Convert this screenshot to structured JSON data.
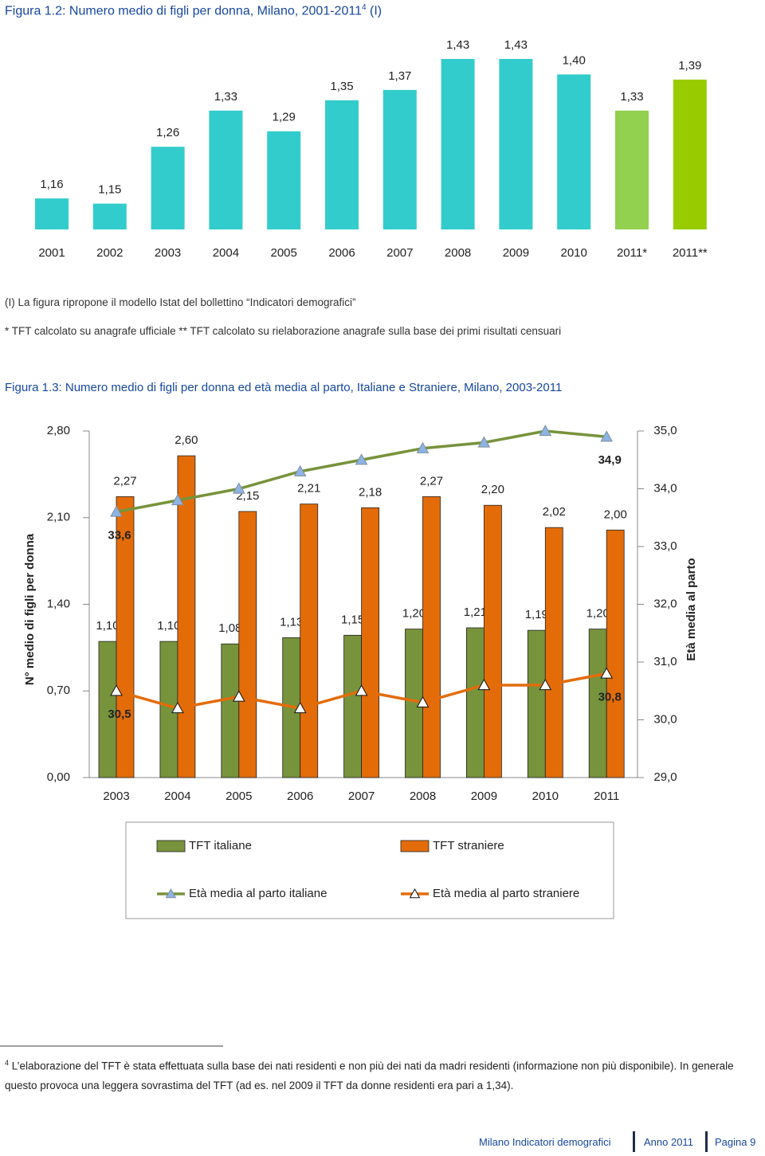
{
  "chart_data": [
    {
      "type": "bar",
      "title": "Figura 1.2: Numero medio di figli per donna, Milano, 2001-2011",
      "title_note_ref": "4",
      "title_suffix": "(I)",
      "categories": [
        "2001",
        "2002",
        "2003",
        "2004",
        "2005",
        "2006",
        "2007",
        "2008",
        "2009",
        "2010",
        "2011*",
        "2011**"
      ],
      "values": [
        1.16,
        1.15,
        1.26,
        1.33,
        1.29,
        1.35,
        1.37,
        1.43,
        1.43,
        1.4,
        1.33,
        1.39
      ],
      "value_labels": [
        "1,16",
        "1,15",
        "1,26",
        "1,33",
        "1,29",
        "1,35",
        "1,37",
        "1,43",
        "1,43",
        "1,40",
        "1,33",
        "1,39"
      ],
      "colors": [
        "#33CCCC",
        "#33CCCC",
        "#33CCCC",
        "#33CCCC",
        "#33CCCC",
        "#33CCCC",
        "#33CCCC",
        "#33CCCC",
        "#33CCCC",
        "#33CCCC",
        "#92D050",
        "#99CC00"
      ],
      "ylim": [
        1.1,
        1.45
      ],
      "notes": [
        "(I) La figura ripropone il modello Istat del bollettino “Indicatori demografici”",
        "* TFT calcolato su anagrafe ufficiale ** TFT calcolato su rielaborazione anagrafe sulla base dei primi risultati censuari"
      ]
    },
    {
      "type": "combo",
      "title": "Figura 1.3: Numero medio di figli per donna ed età media al parto, Italiane e Straniere, Milano, 2003-2011",
      "categories": [
        "2003",
        "2004",
        "2005",
        "2006",
        "2007",
        "2008",
        "2009",
        "2010",
        "2011"
      ],
      "ylabel": "N° medio di figli per donna",
      "y2label": "Età media al parto",
      "ylim": [
        0,
        2.8
      ],
      "yticks": [
        {
          "value": 0,
          "label": "0,00"
        },
        {
          "value": 0.7,
          "label": "0,70"
        },
        {
          "value": 1.4,
          "label": "1,40"
        },
        {
          "value": 2.1,
          "label": "2,10"
        },
        {
          "value": 2.8,
          "label": "2,80"
        }
      ],
      "y2lim": [
        29,
        35
      ],
      "y2ticks": [
        {
          "value": 29,
          "label": "29,0"
        },
        {
          "value": 30,
          "label": "30,0"
        },
        {
          "value": 31,
          "label": "31,0"
        },
        {
          "value": 32,
          "label": "32,0"
        },
        {
          "value": 33,
          "label": "33,0"
        },
        {
          "value": 34,
          "label": "34,0"
        },
        {
          "value": 35,
          "label": "35,0"
        }
      ],
      "series": [
        {
          "name": "TFT italiane",
          "type": "bar",
          "color": "#77933C",
          "values": [
            1.1,
            1.1,
            1.08,
            1.13,
            1.15,
            1.2,
            1.21,
            1.19,
            1.2
          ],
          "value_labels": [
            "1,10",
            "1,10",
            "1,08",
            "1,13",
            "1,15",
            "1,20",
            "1,21",
            "1,19",
            "1,20"
          ]
        },
        {
          "name": "TFT straniere",
          "type": "bar",
          "color": "#E36C09",
          "values": [
            2.27,
            2.6,
            2.15,
            2.21,
            2.18,
            2.27,
            2.2,
            2.02,
            2.0
          ],
          "value_labels": [
            "2,27",
            "2,60",
            "2,15",
            "2,21",
            "2,18",
            "2,27",
            "2,20",
            "2,02",
            "2,00"
          ]
        },
        {
          "name": "Età media al parto italiane",
          "type": "line",
          "axis": "y2",
          "color": "#77933C",
          "marker_color": "#8DB4E2",
          "values": [
            33.6,
            33.8,
            34.0,
            34.3,
            34.5,
            34.7,
            34.8,
            35.0,
            34.9
          ],
          "value_labels": [
            "33,6",
            null,
            null,
            null,
            null,
            null,
            null,
            null,
            "34,9"
          ]
        },
        {
          "name": "Età media al parto straniere",
          "type": "line",
          "axis": "y2",
          "color": "#E36C09",
          "marker_color": "#FFFFFF",
          "values": [
            30.5,
            30.2,
            30.4,
            30.2,
            30.5,
            30.3,
            30.6,
            30.6,
            30.8
          ],
          "value_labels": [
            "30,5",
            null,
            null,
            null,
            null,
            null,
            null,
            null,
            "30,8"
          ]
        }
      ]
    }
  ],
  "footnote": {
    "ref": "4",
    "text": "L’elaborazione del TFT è stata effettuata sulla base dei nati residenti e non più dei nati da madri residenti (informazione non più disponibile). In generale questo provoca una leggera sovrastima del TFT (ad es. nel 2009 il TFT da donne residenti era pari a 1,34)."
  },
  "footer": {
    "publication": "Milano Indicatori demografici",
    "year": "Anno 2011",
    "page": "Pagina 9"
  }
}
